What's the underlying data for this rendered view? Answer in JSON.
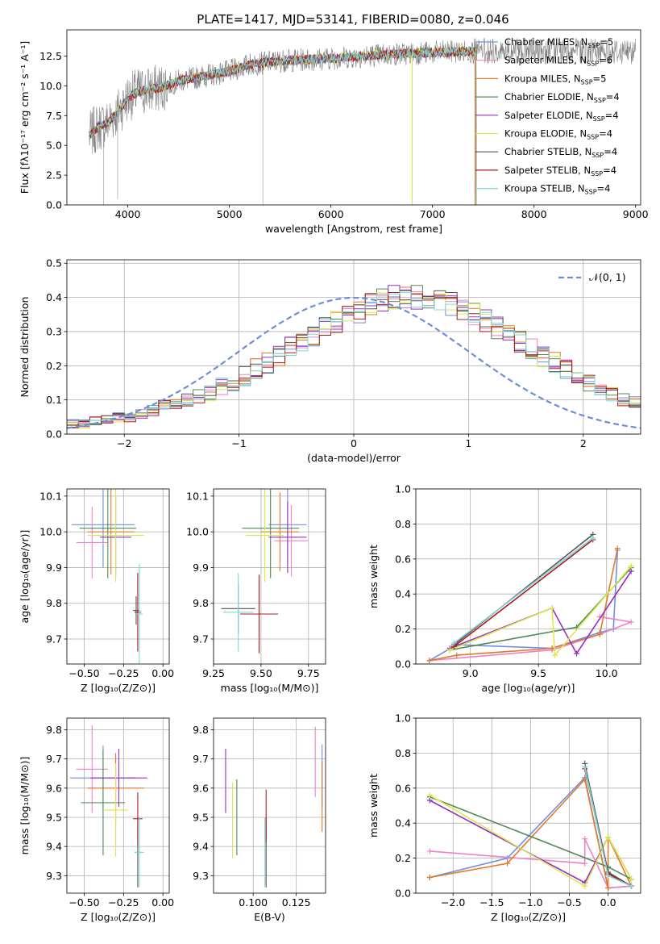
{
  "figure": {
    "title": "PLATE=1417, MJD=53141, FIBERID=0080, z=0.046"
  },
  "colors": {
    "Chabrier MILES": "#6f8fe0",
    "Salpeter MILES": "#ee82c8",
    "Kroupa MILES": "#e37a25",
    "Chabrier ELODIE": "#4e8a55",
    "Salpeter ELODIE": "#9b2ec4",
    "Kroupa ELODIE": "#d8ea4a",
    "Chabrier STELIB": "#555555",
    "Salpeter STELIB": "#b01818",
    "Kroupa STELIB": "#7fd7dc",
    "gray_spectrum": "#808080",
    "normal_curve": "#6a8fd8"
  },
  "chart_data": [
    {
      "id": "spectrum",
      "type": "line",
      "xlabel": "wavelength [Angstrom, rest frame]",
      "ylabel": "Flux [fλ10⁻¹⁷ erg cm⁻² s⁻¹ A⁻¹]",
      "xlim": [
        3400,
        9050
      ],
      "ylim": [
        0,
        14.7
      ],
      "xticks": [
        4000,
        5000,
        6000,
        7000,
        8000,
        9000
      ],
      "xtick_labels": [
        "4000",
        "5000",
        "6000",
        "7000",
        "8000",
        "9000"
      ],
      "yticks": [
        0,
        2.5,
        5,
        7.5,
        10,
        12.5
      ],
      "ytick_labels": [
        "0.0",
        "2.5",
        "5.0",
        "7.5",
        "10.0",
        "12.5"
      ],
      "legend_position": "right",
      "legend": [
        {
          "label": "Chabrier MILES, N",
          "sub": "SSP",
          "tail": "=5",
          "key": "Chabrier MILES"
        },
        {
          "label": "Salpeter MILES, N",
          "sub": "SSP",
          "tail": "=6",
          "key": "Salpeter MILES"
        },
        {
          "label": "Kroupa MILES, N",
          "sub": "SSP",
          "tail": "=5",
          "key": "Kroupa MILES"
        },
        {
          "label": "Chabrier ELODIE, N",
          "sub": "SSP",
          "tail": "=4",
          "key": "Chabrier ELODIE"
        },
        {
          "label": "Salpeter ELODIE, N",
          "sub": "SSP",
          "tail": "=4",
          "key": "Salpeter ELODIE"
        },
        {
          "label": "Kroupa ELODIE, N",
          "sub": "SSP",
          "tail": "=4",
          "key": "Kroupa ELODIE"
        },
        {
          "label": "Chabrier STELIB, N",
          "sub": "SSP",
          "tail": "=4",
          "key": "Chabrier STELIB"
        },
        {
          "label": "Salpeter STELIB, N",
          "sub": "SSP",
          "tail": "=4",
          "key": "Salpeter STELIB"
        },
        {
          "label": "Kroupa STELIB, N",
          "sub": "SSP",
          "tail": "=4",
          "key": "Kroupa STELIB"
        }
      ],
      "continuum": [
        [
          3620,
          5.8
        ],
        [
          3700,
          6.5
        ],
        [
          3800,
          6.9
        ],
        [
          3900,
          7.8
        ],
        [
          4000,
          9.0
        ],
        [
          4100,
          9.5
        ],
        [
          4300,
          9.8
        ],
        [
          4500,
          10.4
        ],
        [
          4800,
          10.9
        ],
        [
          5000,
          11.2
        ],
        [
          5200,
          11.8
        ],
        [
          5500,
          12.1
        ],
        [
          6000,
          12.3
        ],
        [
          6500,
          12.6
        ],
        [
          7000,
          12.8
        ],
        [
          7400,
          12.9
        ]
      ],
      "model_range": [
        3620,
        7430
      ],
      "data_range": [
        3620,
        9000
      ]
    },
    {
      "id": "residuals",
      "type": "step",
      "xlabel": "(data-model)/error",
      "ylabel": "Normed distribution",
      "xlim": [
        -2.5,
        2.5
      ],
      "ylim": [
        0,
        0.51
      ],
      "xticks": [
        -2,
        -1,
        0,
        1,
        2
      ],
      "xtick_labels": [
        "−2",
        "−1",
        "0",
        "1",
        "2"
      ],
      "yticks": [
        0,
        0.1,
        0.2,
        0.3,
        0.4,
        0.5
      ],
      "ytick_labels": [
        "0.0",
        "0.1",
        "0.2",
        "0.3",
        "0.4",
        "0.5"
      ],
      "legend_label": "𝒩(0, 1)",
      "legend_position": "top-right",
      "bin_width": 0.1,
      "bin_start": -2.5,
      "base_hist": [
        0.03,
        0.03,
        0.04,
        0.04,
        0.05,
        0.05,
        0.06,
        0.07,
        0.08,
        0.09,
        0.1,
        0.11,
        0.12,
        0.14,
        0.15,
        0.17,
        0.19,
        0.21,
        0.23,
        0.25,
        0.27,
        0.29,
        0.31,
        0.33,
        0.35,
        0.36,
        0.38,
        0.39,
        0.4,
        0.4,
        0.4,
        0.4,
        0.39,
        0.38,
        0.37,
        0.35,
        0.33,
        0.31,
        0.29,
        0.27,
        0.25,
        0.23,
        0.21,
        0.19,
        0.17,
        0.15,
        0.14,
        0.12,
        0.1,
        0.09
      ]
    },
    {
      "id": "age-vs-Z",
      "type": "errorbar",
      "xlabel": "Z [log₁₀(Z/Z⊙)]",
      "ylabel": "age  [log₁₀(age/yr)]",
      "xlim": [
        -0.61,
        0.04
      ],
      "ylim": [
        9.63,
        10.12
      ],
      "xticks": [
        -0.5,
        -0.25,
        0.0
      ],
      "xtick_labels": [
        "−0.50",
        "−0.25",
        "0.00"
      ],
      "yticks": [
        9.7,
        9.8,
        9.9,
        10.0,
        10.1
      ],
      "ytick_labels": [
        "9.7",
        "9.8",
        "9.9",
        "10.0",
        "10.1"
      ],
      "points": [
        {
          "key": "Chabrier MILES",
          "x": -0.38,
          "y": 10.02,
          "xerr": 0.2,
          "yerr": 0.12
        },
        {
          "key": "Salpeter MILES",
          "x": -0.45,
          "y": 9.97,
          "xerr": 0.1,
          "yerr": 0.1
        },
        {
          "key": "Kroupa MILES",
          "x": -0.33,
          "y": 10.0,
          "xerr": 0.15,
          "yerr": 0.12
        },
        {
          "key": "Chabrier ELODIE",
          "x": -0.35,
          "y": 10.01,
          "xerr": 0.18,
          "yerr": 0.14
        },
        {
          "key": "Salpeter ELODIE",
          "x": -0.3,
          "y": 9.985,
          "xerr": 0.1,
          "yerr": 0.11
        },
        {
          "key": "Kroupa ELODIE",
          "x": -0.3,
          "y": 9.99,
          "xerr": 0.18,
          "yerr": 0.13
        },
        {
          "key": "Chabrier STELIB",
          "x": -0.17,
          "y": 9.78,
          "xerr": 0.02,
          "yerr": 0.04
        },
        {
          "key": "Salpeter STELIB",
          "x": -0.16,
          "y": 9.775,
          "xerr": 0.02,
          "yerr": 0.11
        },
        {
          "key": "Kroupa STELIB",
          "x": -0.15,
          "y": 9.77,
          "xerr": 0.02,
          "yerr": 0.14
        }
      ]
    },
    {
      "id": "age-vs-mass",
      "type": "errorbar",
      "xlabel": "mass [log₁₀(M/M⊙)]",
      "ylabel": "",
      "xlim": [
        9.25,
        9.84
      ],
      "ylim": [
        9.63,
        10.12
      ],
      "xticks": [
        9.25,
        9.5,
        9.75
      ],
      "xtick_labels": [
        "9.25",
        "9.50",
        "9.75"
      ],
      "yticks": [
        9.7,
        9.8,
        9.9,
        10.0,
        10.1
      ],
      "ytick_labels": [
        "9.7",
        "9.8",
        "9.9",
        "10.0",
        "10.1"
      ],
      "points": [
        {
          "key": "Chabrier MILES",
          "x": 9.64,
          "y": 10.02,
          "xerr": 0.1,
          "yerr": 0.11
        },
        {
          "key": "Salpeter MILES",
          "x": 9.66,
          "y": 9.975,
          "xerr": 0.09,
          "yerr": 0.1
        },
        {
          "key": "Kroupa MILES",
          "x": 9.6,
          "y": 10.0,
          "xerr": 0.1,
          "yerr": 0.11
        },
        {
          "key": "Chabrier ELODIE",
          "x": 9.55,
          "y": 10.01,
          "xerr": 0.15,
          "yerr": 0.14
        },
        {
          "key": "Salpeter ELODIE",
          "x": 9.64,
          "y": 9.985,
          "xerr": 0.1,
          "yerr": 0.1
        },
        {
          "key": "Kroupa ELODIE",
          "x": 9.52,
          "y": 9.99,
          "xerr": 0.1,
          "yerr": 0.13
        },
        {
          "key": "Chabrier STELIB",
          "x": 9.38,
          "y": 9.785,
          "xerr": 0.09,
          "yerr": 0.07
        },
        {
          "key": "Salpeter STELIB",
          "x": 9.49,
          "y": 9.77,
          "xerr": 0.1,
          "yerr": 0.11
        },
        {
          "key": "Kroupa STELIB",
          "x": 9.38,
          "y": 9.775,
          "xerr": 0.08,
          "yerr": 0.11
        }
      ]
    },
    {
      "id": "massweight-vs-age",
      "type": "line",
      "xlabel": "age  [log₁₀(age/yr)]",
      "ylabel": "mass weight",
      "xlim": [
        8.6,
        10.25
      ],
      "ylim": [
        0,
        1.0
      ],
      "xticks": [
        9.0,
        9.5,
        10.0
      ],
      "xtick_labels": [
        "9.0",
        "9.5",
        "10.0"
      ],
      "yticks": [
        0,
        0.2,
        0.4,
        0.6,
        0.8,
        1.0
      ],
      "ytick_labels": [
        "0.0",
        "0.2",
        "0.4",
        "0.6",
        "0.8",
        "1.0"
      ],
      "series": [
        {
          "key": "Chabrier MILES",
          "x": [
            8.7,
            8.9,
            9.6,
            9.95,
            10.05,
            10.08
          ],
          "y": [
            0.02,
            0.11,
            0.09,
            0.18,
            0.2,
            0.65
          ]
        },
        {
          "key": "Salpeter MILES",
          "x": [
            8.7,
            9.6,
            9.95,
            10.18,
            9.95
          ],
          "y": [
            0.02,
            0.08,
            0.17,
            0.24,
            0.27
          ]
        },
        {
          "key": "Kroupa MILES",
          "x": [
            8.7,
            8.9,
            9.6,
            9.95,
            10.08
          ],
          "y": [
            0.02,
            0.05,
            0.09,
            0.17,
            0.66
          ]
        },
        {
          "key": "Chabrier ELODIE",
          "x": [
            8.85,
            9.78,
            10.18
          ],
          "y": [
            0.08,
            0.21,
            0.55
          ]
        },
        {
          "key": "Salpeter ELODIE",
          "x": [
            8.85,
            9.6,
            9.78,
            10.18
          ],
          "y": [
            0.09,
            0.32,
            0.06,
            0.53
          ]
        },
        {
          "key": "Kroupa ELODIE",
          "x": [
            8.85,
            9.6,
            9.62,
            10.18
          ],
          "y": [
            0.08,
            0.32,
            0.05,
            0.56
          ]
        },
        {
          "key": "Chabrier STELIB",
          "x": [
            8.88,
            9.9
          ],
          "y": [
            0.11,
            0.74
          ]
        },
        {
          "key": "Salpeter STELIB",
          "x": [
            8.88,
            9.9
          ],
          "y": [
            0.1,
            0.71
          ]
        },
        {
          "key": "Kroupa STELIB",
          "x": [
            8.88,
            9.9
          ],
          "y": [
            0.12,
            0.72
          ]
        }
      ]
    },
    {
      "id": "mass-vs-Z",
      "type": "errorbar",
      "xlabel": "Z [log₁₀(Z/Z⊙)]",
      "ylabel": "mass [log₁₀(M/M⊙)]",
      "xlim": [
        -0.61,
        0.04
      ],
      "ylim": [
        9.24,
        9.84
      ],
      "xticks": [
        -0.5,
        -0.25,
        0.0
      ],
      "xtick_labels": [
        "−0.50",
        "−0.25",
        "0.00"
      ],
      "yticks": [
        9.3,
        9.4,
        9.5,
        9.6,
        9.7,
        9.8
      ],
      "ytick_labels": [
        "9.3",
        "9.4",
        "9.5",
        "9.6",
        "9.7",
        "9.8"
      ],
      "points": [
        {
          "key": "Chabrier MILES",
          "x": -0.38,
          "y": 9.635,
          "xerr": 0.21,
          "yerr": 0.11
        },
        {
          "key": "Salpeter MILES",
          "x": -0.45,
          "y": 9.665,
          "xerr": 0.1,
          "yerr": 0.15
        },
        {
          "key": "Kroupa MILES",
          "x": -0.3,
          "y": 9.6,
          "xerr": 0.18,
          "yerr": 0.12
        },
        {
          "key": "Chabrier ELODIE",
          "x": -0.38,
          "y": 9.55,
          "xerr": 0.14,
          "yerr": 0.18
        },
        {
          "key": "Salpeter ELODIE",
          "x": -0.28,
          "y": 9.635,
          "xerr": 0.18,
          "yerr": 0.1
        },
        {
          "key": "Kroupa ELODIE",
          "x": -0.3,
          "y": 9.525,
          "xerr": 0.08,
          "yerr": 0.16
        },
        {
          "key": "Chabrier STELIB",
          "x": -0.16,
          "y": 9.38,
          "xerr": 0.02,
          "yerr": 0.12
        },
        {
          "key": "Salpeter STELIB",
          "x": -0.16,
          "y": 9.495,
          "xerr": 0.03,
          "yerr": 0.09
        },
        {
          "key": "Kroupa STELIB",
          "x": -0.15,
          "y": 9.38,
          "xerr": 0.03,
          "yerr": 0.12
        }
      ]
    },
    {
      "id": "mass-vs-EBV",
      "type": "errorbar",
      "xlabel": "E(B-V)",
      "ylabel": "",
      "xlim": [
        0.077,
        0.142
      ],
      "ylim": [
        9.24,
        9.84
      ],
      "xticks": [
        0.1,
        0.125
      ],
      "xtick_labels": [
        "0.100",
        "0.125"
      ],
      "yticks": [
        9.3,
        9.4,
        9.5,
        9.6,
        9.7,
        9.8
      ],
      "ytick_labels": [
        "9.3",
        "9.4",
        "9.5",
        "9.6",
        "9.7",
        "9.8"
      ],
      "points": [
        {
          "key": "Chabrier MILES",
          "x": 0.14,
          "y": 9.64,
          "xerr": 0,
          "yerr": 0.11
        },
        {
          "key": "Salpeter MILES",
          "x": 0.136,
          "y": 9.69,
          "xerr": 0,
          "yerr": 0.12
        },
        {
          "key": "Kroupa MILES",
          "x": 0.14,
          "y": 9.57,
          "xerr": 0,
          "yerr": 0.12
        },
        {
          "key": "Chabrier ELODIE",
          "x": 0.0905,
          "y": 9.5,
          "xerr": 0,
          "yerr": 0.13
        },
        {
          "key": "Salpeter ELODIE",
          "x": 0.084,
          "y": 9.625,
          "xerr": 0,
          "yerr": 0.11
        },
        {
          "key": "Kroupa ELODIE",
          "x": 0.088,
          "y": 9.49,
          "xerr": 0,
          "yerr": 0.13
        },
        {
          "key": "Chabrier STELIB",
          "x": 0.1075,
          "y": 9.38,
          "xerr": 0,
          "yerr": 0.12
        },
        {
          "key": "Salpeter STELIB",
          "x": 0.1075,
          "y": 9.505,
          "xerr": 0,
          "yerr": 0.09
        },
        {
          "key": "Kroupa STELIB",
          "x": 0.1068,
          "y": 9.38,
          "xerr": 0,
          "yerr": 0.12
        }
      ]
    },
    {
      "id": "massweight-vs-Z",
      "type": "line",
      "xlabel": "Z [log₁₀(Z/Z⊙)]",
      "ylabel": "mass weight",
      "xlim": [
        -2.48,
        0.42
      ],
      "ylim": [
        0,
        1.0
      ],
      "xticks": [
        -2.0,
        -1.5,
        -1.0,
        -0.5,
        0.0
      ],
      "xtick_labels": [
        "−2.0",
        "−1.5",
        "−1.0",
        "−0.5",
        "0.0"
      ],
      "yticks": [
        0,
        0.2,
        0.4,
        0.6,
        0.8,
        1.0
      ],
      "ytick_labels": [
        "0.0",
        "0.2",
        "0.4",
        "0.6",
        "0.8",
        "1.0"
      ],
      "series": [
        {
          "key": "Chabrier MILES",
          "x": [
            -2.3,
            -1.3,
            -0.3,
            0.0,
            0.3
          ],
          "y": [
            0.09,
            0.2,
            0.66,
            0.03,
            0.04
          ]
        },
        {
          "key": "Salpeter MILES",
          "x": [
            -2.3,
            -0.3,
            -0.3,
            0.0,
            0.3
          ],
          "y": [
            0.24,
            0.17,
            0.31,
            0.03,
            0.04
          ]
        },
        {
          "key": "Kroupa MILES",
          "x": [
            -2.3,
            -1.3,
            -0.3,
            0.0,
            0.0,
            0.3
          ],
          "y": [
            0.09,
            0.17,
            0.65,
            0.03,
            0.32,
            0.04
          ]
        },
        {
          "key": "Chabrier ELODIE",
          "x": [
            -2.3,
            0.0,
            0.3
          ],
          "y": [
            0.55,
            0.15,
            0.08
          ]
        },
        {
          "key": "Salpeter ELODIE",
          "x": [
            -2.3,
            -0.3,
            0.0,
            0.3
          ],
          "y": [
            0.53,
            0.06,
            0.32,
            0.08
          ]
        },
        {
          "key": "Kroupa ELODIE",
          "x": [
            -2.3,
            -0.3,
            0.0,
            0.3
          ],
          "y": [
            0.56,
            0.04,
            0.32,
            0.08
          ]
        },
        {
          "key": "Chabrier STELIB",
          "x": [
            -0.3,
            0.0,
            0.3
          ],
          "y": [
            0.74,
            0.12,
            0.04
          ]
        },
        {
          "key": "Salpeter STELIB",
          "x": [
            -0.3,
            0.0,
            0.3
          ],
          "y": [
            0.71,
            0.11,
            0.04
          ]
        },
        {
          "key": "Kroupa STELIB",
          "x": [
            -0.3,
            0.0,
            0.3
          ],
          "y": [
            0.72,
            0.1,
            0.04
          ]
        }
      ]
    }
  ]
}
